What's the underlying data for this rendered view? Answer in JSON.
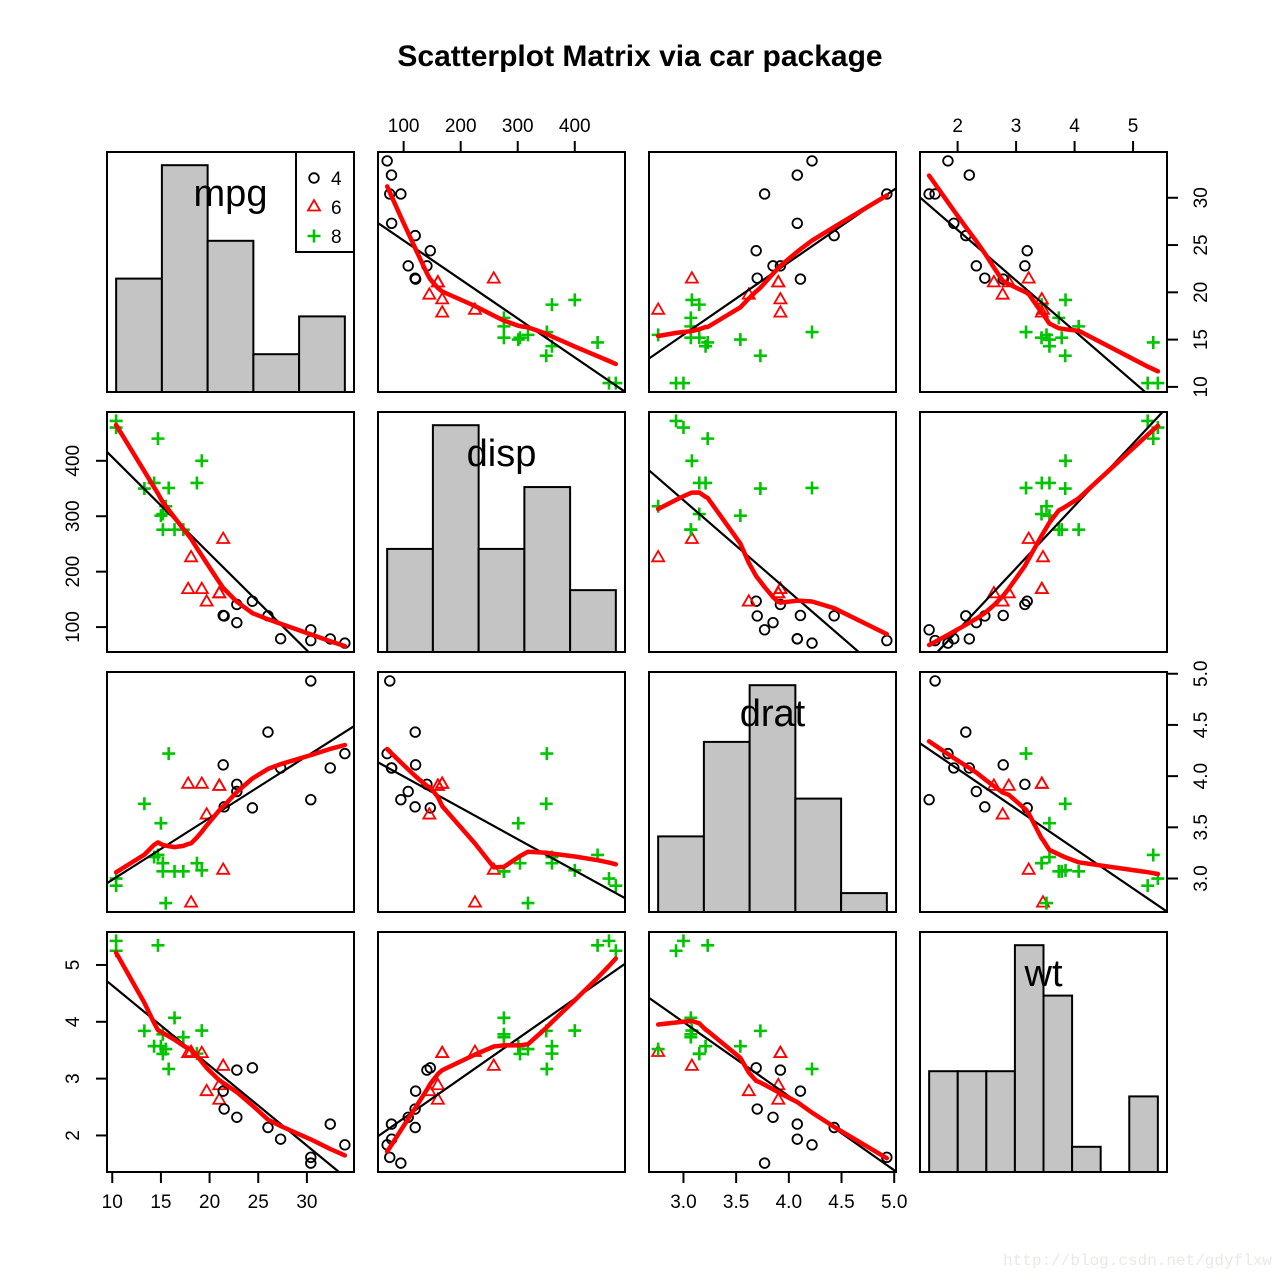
{
  "title": "Scatterplot Matrix via car package",
  "watermark": "http://blog.csdn.net/gdyflxw",
  "colors": {
    "cyl4": "#000000",
    "cyl6": "#ff0000",
    "cyl8": "#00c400",
    "smooth_line": "#ff0000",
    "regression_line": "#000000",
    "bar_fill": "#c4c4c4",
    "bar_stroke": "#000000",
    "axis": "#000000"
  },
  "legend": {
    "entries": [
      {
        "symbol": "circle",
        "color_key": "cyl4",
        "label": "4"
      },
      {
        "symbol": "triangle",
        "color_key": "cyl6",
        "label": "6"
      },
      {
        "symbol": "plus",
        "color_key": "cyl8",
        "label": "8"
      }
    ]
  },
  "chart_data": {
    "type": "scatter",
    "subtype": "scatterplot-matrix",
    "title": "Scatterplot Matrix via car package",
    "group_variable": "cyl",
    "groups": [
      {
        "value": 4,
        "symbol": "circle",
        "color_key": "cyl4"
      },
      {
        "value": 6,
        "symbol": "triangle",
        "color_key": "cyl6"
      },
      {
        "value": 8,
        "symbol": "plus",
        "color_key": "cyl8"
      }
    ],
    "variables": [
      {
        "name": "mpg",
        "label": "mpg",
        "range": [
          9.46,
          34.84
        ],
        "ticks": [
          10,
          15,
          20,
          25,
          30
        ],
        "tick_labels": [
          "10",
          "15",
          "20",
          "25",
          "30"
        ]
      },
      {
        "name": "disp",
        "label": "disp",
        "range": [
          55.06,
          488.04
        ],
        "ticks": [
          100,
          200,
          300,
          400
        ],
        "tick_labels": [
          "100",
          "200",
          "300",
          "400"
        ]
      },
      {
        "name": "drat",
        "label": "drat",
        "range": [
          2.673,
          5.017
        ],
        "ticks": [
          3.0,
          3.5,
          4.0,
          4.5,
          5.0
        ],
        "tick_labels": [
          "3.0",
          "3.5",
          "4.0",
          "4.5",
          "5.0"
        ]
      },
      {
        "name": "wt",
        "label": "wt",
        "range": [
          1.357,
          5.58
        ],
        "ticks": [
          2,
          3,
          4,
          5
        ],
        "tick_labels": [
          "2",
          "3",
          "4",
          "5"
        ]
      }
    ],
    "histograms": {
      "mpg": {
        "breaks": [
          10,
          15,
          20,
          25,
          30,
          35
        ],
        "counts": [
          6,
          12,
          8,
          2,
          4
        ]
      },
      "disp": {
        "breaks": [
          0,
          100,
          200,
          300,
          400,
          500
        ],
        "counts": [
          5,
          11,
          5,
          8,
          3
        ]
      },
      "drat": {
        "breaks": [
          2.5,
          3.0,
          3.5,
          4.0,
          4.5,
          5.0
        ],
        "counts": [
          4,
          9,
          12,
          6,
          1
        ]
      },
      "wt": {
        "breaks": [
          1.5,
          2.0,
          2.5,
          3.0,
          3.5,
          4.0,
          4.5,
          5.0,
          5.5
        ],
        "counts": [
          4,
          4,
          4,
          9,
          7,
          1,
          0,
          3
        ]
      }
    },
    "points": {
      "cyl": [
        6,
        6,
        4,
        6,
        8,
        6,
        8,
        4,
        4,
        6,
        6,
        8,
        8,
        8,
        8,
        8,
        8,
        4,
        4,
        4,
        4,
        8,
        8,
        8,
        8,
        4,
        4,
        4,
        8,
        6,
        8,
        4
      ],
      "mpg": [
        21,
        21,
        22.8,
        21.4,
        18.7,
        18.1,
        14.3,
        24.4,
        22.8,
        19.2,
        17.8,
        16.4,
        17.3,
        15.2,
        10.4,
        10.4,
        14.7,
        32.4,
        30.4,
        33.9,
        21.5,
        15.5,
        15.2,
        13.3,
        19.2,
        27.3,
        26,
        30.4,
        15.8,
        19.7,
        15,
        21.4
      ],
      "disp": [
        160,
        160,
        108,
        258,
        360,
        225,
        360,
        146.7,
        140.8,
        167.6,
        167.6,
        275.8,
        275.8,
        275.8,
        472,
        460,
        440,
        78.7,
        75.7,
        71.1,
        120.1,
        318,
        304,
        350,
        400,
        79,
        120.3,
        95.1,
        351,
        145,
        301,
        121
      ],
      "drat": [
        3.9,
        3.9,
        3.85,
        3.08,
        3.15,
        2.76,
        3.21,
        3.69,
        3.92,
        3.92,
        3.92,
        3.07,
        3.07,
        3.07,
        2.93,
        3,
        3.23,
        4.08,
        4.93,
        4.22,
        3.7,
        2.76,
        3.15,
        3.73,
        3.08,
        4.08,
        4.43,
        3.77,
        4.22,
        3.62,
        3.54,
        4.11
      ],
      "wt": [
        2.62,
        2.875,
        2.32,
        3.215,
        3.44,
        3.46,
        3.57,
        3.19,
        3.15,
        3.44,
        3.44,
        4.07,
        3.73,
        3.78,
        5.25,
        5.424,
        5.345,
        2.2,
        1.615,
        1.835,
        2.465,
        3.52,
        3.435,
        3.84,
        3.845,
        1.935,
        2.14,
        1.513,
        3.17,
        2.77,
        3.57,
        2.78
      ]
    },
    "panel_lines": [
      "regression",
      "lowess-smooth"
    ],
    "layout_hints": {
      "grid": "off",
      "top_axis_columns": [
        2,
        4
      ],
      "bottom_axis_columns": [
        1,
        3
      ],
      "left_axis_rows": [
        2,
        4
      ],
      "right_axis_rows": [
        1,
        3
      ],
      "legend_position": "top-right-of-first-diagonal-panel"
    }
  }
}
